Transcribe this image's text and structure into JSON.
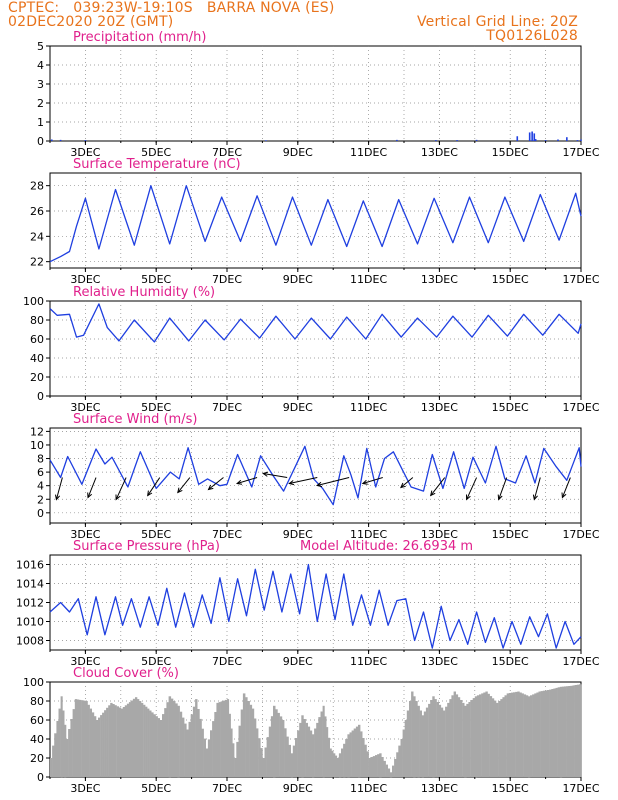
{
  "header": {
    "line1_left": "CPTEC:   039:23W-19:10S   BARRA NOVA (ES)",
    "line2_left": "02DEC2020 20Z (GMT)",
    "line1_right": "Vertical Grid Line: 20Z",
    "line2_right": "TQ0126L028"
  },
  "colors": {
    "header": "#e8731c",
    "title": "#e0208c",
    "line": "#1f3fe0",
    "cloud": "#a8a8a8",
    "grid": "#888888",
    "arrow": "#000000"
  },
  "x_ticks": [
    "3DEC",
    "5DEC",
    "7DEC",
    "9DEC",
    "11DEC",
    "13DEC",
    "15DEC",
    "17DEC"
  ],
  "x_range": [
    "02DEC2020 20Z",
    "17DEC2020 20Z"
  ],
  "chart_data": [
    {
      "id": "precip",
      "type": "bar",
      "title": "Precipitation (mm/h)",
      "ylim": [
        0,
        5
      ],
      "yticks": [
        "0",
        "1",
        "2",
        "3",
        "4",
        "5"
      ],
      "x_days": [
        0.05,
        0.3,
        1.0,
        6.1,
        9.8,
        10.9,
        11.5,
        12.05,
        13.2,
        13.55,
        13.62,
        13.68,
        13.72,
        14.0,
        14.35,
        14.6,
        14.9,
        15.0
      ],
      "values": [
        0.08,
        0.06,
        0.05,
        0.04,
        0.06,
        0.05,
        0.05,
        0.06,
        0.25,
        0.45,
        0.5,
        0.4,
        0.1,
        0.05,
        0.08,
        0.2,
        0.05,
        0.08
      ]
    },
    {
      "id": "temp",
      "type": "line",
      "title": "Surface Temperature (nC)",
      "ylim": [
        21.5,
        29
      ],
      "yticks": [
        "22",
        "24",
        "26",
        "28"
      ],
      "y_tick_values": [
        22,
        24,
        26,
        28
      ],
      "x_days": [
        0,
        0.3,
        0.55,
        0.75,
        1.0,
        1.38,
        1.85,
        2.38,
        2.85,
        3.38,
        3.85,
        4.38,
        4.85,
        5.38,
        5.85,
        6.38,
        6.85,
        7.38,
        7.85,
        8.38,
        8.85,
        9.38,
        9.85,
        10.38,
        10.85,
        11.38,
        11.85,
        12.38,
        12.85,
        13.38,
        13.85,
        14.38,
        14.85,
        15.0
      ],
      "values": [
        22.0,
        22.4,
        22.8,
        24.8,
        27.0,
        23.0,
        27.7,
        23.3,
        28.0,
        23.4,
        28.0,
        23.6,
        27.1,
        23.6,
        27.2,
        23.3,
        27.1,
        23.3,
        26.9,
        23.2,
        26.8,
        23.2,
        26.9,
        23.4,
        27.0,
        23.5,
        27.1,
        23.5,
        27.1,
        23.6,
        27.3,
        23.7,
        27.4,
        25.6
      ]
    },
    {
      "id": "rh",
      "type": "line",
      "title": "Relative Humidity (%)",
      "ylim": [
        0,
        100
      ],
      "yticks": [
        "0",
        "20",
        "40",
        "60",
        "80",
        "100"
      ],
      "y_tick_values": [
        0,
        20,
        40,
        60,
        80,
        100
      ],
      "x_days": [
        0,
        0.2,
        0.55,
        0.75,
        0.95,
        1.38,
        1.62,
        1.95,
        2.38,
        2.95,
        3.38,
        3.92,
        4.38,
        4.92,
        5.38,
        5.92,
        6.38,
        6.92,
        7.38,
        7.92,
        8.38,
        8.92,
        9.38,
        9.92,
        10.38,
        10.92,
        11.38,
        11.92,
        12.38,
        12.92,
        13.38,
        13.92,
        14.38,
        14.92,
        15.0
      ],
      "values": [
        92,
        85,
        86,
        62,
        64,
        97,
        72,
        58,
        80,
        57,
        82,
        58,
        80,
        59,
        81,
        61,
        84,
        60,
        82,
        60,
        83,
        60,
        86,
        62,
        82,
        62,
        84,
        62,
        85,
        63,
        86,
        64,
        86,
        66,
        76
      ]
    },
    {
      "id": "wind",
      "type": "line",
      "title": "Surface Wind (m/s)",
      "ylim": [
        -1.5,
        12.5
      ],
      "yticks": [
        "0",
        "2",
        "4",
        "6",
        "8",
        "10",
        "12"
      ],
      "y_tick_values": [
        0,
        2,
        4,
        6,
        8,
        10,
        12
      ],
      "x_days": [
        0,
        0.3,
        0.5,
        0.9,
        1.3,
        1.55,
        1.75,
        2.2,
        2.55,
        3.0,
        3.4,
        3.65,
        3.9,
        4.2,
        4.45,
        4.8,
        5.0,
        5.3,
        5.5,
        5.7,
        5.95,
        6.3,
        6.6,
        6.9,
        7.2,
        7.45,
        7.7,
        8.0,
        8.3,
        8.5,
        8.7,
        8.95,
        9.2,
        9.45,
        9.7,
        9.95,
        10.2,
        10.55,
        10.8,
        11.1,
        11.4,
        11.7,
        11.95,
        12.3,
        12.6,
        12.85,
        13.15,
        13.45,
        13.7,
        13.95,
        14.3,
        14.6,
        14.95,
        15.0
      ],
      "values": [
        7.8,
        5.2,
        8.3,
        4.2,
        9.4,
        7.2,
        8.2,
        3.8,
        9.0,
        3.6,
        6.0,
        5.0,
        9.6,
        4.2,
        5.0,
        4.0,
        4.2,
        8.6,
        6.2,
        3.8,
        8.4,
        5.5,
        3.2,
        6.5,
        9.8,
        5.0,
        3.6,
        1.2,
        8.4,
        5.6,
        2.2,
        9.5,
        3.8,
        8.0,
        9.0,
        6.4,
        3.8,
        3.2,
        8.6,
        3.6,
        9.0,
        3.6,
        8.2,
        4.4,
        9.8,
        5.0,
        4.4,
        8.4,
        4.4,
        9.5,
        6.8,
        4.8,
        9.6,
        6.8
      ],
      "barbs_x_days": [
        0.35,
        1.3,
        2.15,
        3.1,
        3.95,
        4.9,
        5.85,
        6.7,
        7.55,
        8.45,
        9.4,
        10.25,
        11.15,
        12.05,
        12.9,
        13.85,
        14.7
      ],
      "barbs_dx_px": [
        -6,
        -8,
        -10,
        -12,
        -12,
        -15,
        -20,
        -24,
        -28,
        -32,
        -20,
        -12,
        -14,
        -10,
        -8,
        -6,
        -8
      ],
      "barbs_dy_px": [
        22,
        20,
        22,
        18,
        15,
        12,
        6,
        -4,
        6,
        8,
        6,
        10,
        18,
        22,
        22,
        22,
        20
      ]
    },
    {
      "id": "pressure",
      "type": "line",
      "title": "Surface Pressure (hPa)",
      "title2": "Model Altitude: 26.6934 m",
      "ylim": [
        1007,
        1017
      ],
      "yticks": [
        "1008",
        "1010",
        "1012",
        "1014",
        "1016"
      ],
      "y_tick_values": [
        1008,
        1010,
        1012,
        1014,
        1016
      ],
      "x_days": [
        0,
        0.3,
        0.55,
        0.8,
        1.05,
        1.3,
        1.55,
        1.85,
        2.05,
        2.3,
        2.55,
        2.8,
        3.05,
        3.3,
        3.55,
        3.8,
        4.05,
        4.3,
        4.55,
        4.8,
        5.05,
        5.3,
        5.55,
        5.8,
        6.05,
        6.3,
        6.55,
        6.8,
        7.05,
        7.3,
        7.55,
        7.8,
        8.05,
        8.3,
        8.55,
        8.8,
        9.05,
        9.3,
        9.55,
        9.8,
        10.05,
        10.3,
        10.55,
        10.8,
        11.05,
        11.3,
        11.55,
        11.8,
        12.05,
        12.3,
        12.55,
        12.8,
        13.05,
        13.3,
        13.55,
        13.8,
        14.05,
        14.3,
        14.55,
        14.8,
        15.0
      ],
      "values": [
        1011.0,
        1012.0,
        1011.0,
        1012.4,
        1008.6,
        1012.6,
        1008.6,
        1012.6,
        1009.6,
        1012.4,
        1009.4,
        1012.6,
        1009.6,
        1013.5,
        1009.4,
        1013.0,
        1009.4,
        1012.8,
        1009.8,
        1014.6,
        1010.0,
        1014.5,
        1010.6,
        1015.5,
        1011.2,
        1015.3,
        1011.0,
        1015.0,
        1010.8,
        1016.0,
        1010.0,
        1015.0,
        1010.2,
        1015.0,
        1009.6,
        1012.8,
        1009.6,
        1013.3,
        1009.6,
        1012.2,
        1012.4,
        1008.0,
        1011.0,
        1007.2,
        1011.6,
        1008.0,
        1010.2,
        1007.6,
        1011.0,
        1007.8,
        1010.4,
        1007.2,
        1010.0,
        1007.6,
        1010.5,
        1008.4,
        1010.8,
        1007.2,
        1010.0,
        1007.6,
        1008.4
      ]
    },
    {
      "id": "cloud",
      "type": "area",
      "title": "Cloud Cover (%)",
      "ylim": [
        0,
        100
      ],
      "yticks": [
        "0",
        "20",
        "40",
        "60",
        "80",
        "100"
      ],
      "y_tick_values": [
        0,
        20,
        40,
        60,
        80,
        100
      ],
      "x_days": [
        0,
        0.3,
        0.45,
        0.7,
        1.0,
        1.3,
        1.7,
        2.0,
        2.4,
        2.8,
        3.1,
        3.35,
        3.6,
        3.85,
        4.1,
        4.4,
        4.7,
        5.0,
        5.2,
        5.45,
        5.7,
        6.0,
        6.3,
        6.55,
        6.8,
        7.1,
        7.4,
        7.7,
        7.9,
        8.1,
        8.4,
        8.7,
        9.0,
        9.3,
        9.6,
        9.9,
        10.2,
        10.5,
        10.8,
        11.1,
        11.4,
        11.7,
        12.0,
        12.3,
        12.6,
        12.9,
        13.2,
        13.5,
        13.8,
        14.1,
        14.4,
        14.7,
        15.0
      ],
      "values": [
        20,
        85,
        40,
        82,
        80,
        60,
        78,
        72,
        84,
        70,
        60,
        85,
        75,
        50,
        82,
        30,
        78,
        82,
        20,
        88,
        72,
        20,
        75,
        60,
        25,
        65,
        45,
        75,
        30,
        20,
        45,
        55,
        20,
        25,
        5,
        40,
        90,
        65,
        85,
        70,
        90,
        75,
        85,
        90,
        78,
        88,
        90,
        85,
        90,
        92,
        95,
        96,
        98
      ]
    }
  ]
}
